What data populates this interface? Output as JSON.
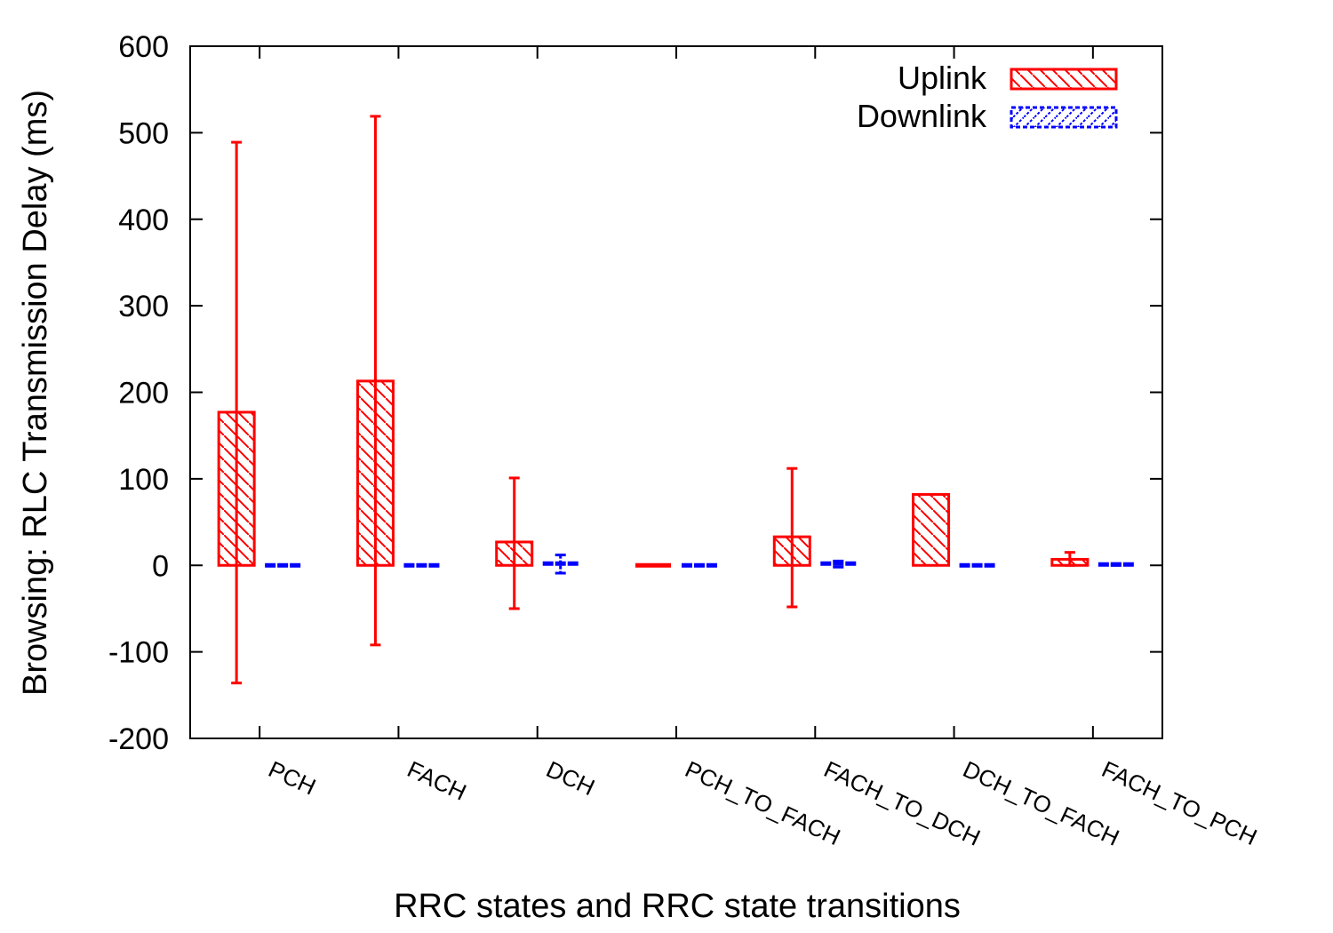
{
  "chart_data": {
    "type": "bar",
    "title": "",
    "xlabel": "RRC states and RRC state transitions",
    "ylabel": "Browsing: RLC Transmission Delay (ms)",
    "ylim": [
      -200,
      600
    ],
    "yticks": [
      -200,
      -100,
      0,
      100,
      200,
      300,
      400,
      500,
      600
    ],
    "grid": false,
    "legend_position": "top-right",
    "categories": [
      "PCH",
      "FACH",
      "DCH",
      "PCH_TO_FACH",
      "FACH_TO_DCH",
      "DCH_TO_FACH",
      "FACH_TO_PCH"
    ],
    "series": [
      {
        "name": "Uplink",
        "color": "#ff0000",
        "pattern": "hatch",
        "values": [
          177,
          213,
          27,
          0,
          33,
          82,
          7
        ],
        "error_low": [
          -136,
          -92,
          -50,
          0,
          -48,
          82,
          0
        ],
        "error_high": [
          489,
          519,
          101,
          0,
          112,
          82,
          15
        ]
      },
      {
        "name": "Downlink",
        "color": "#0000ff",
        "pattern": "dashed-hatch",
        "values": [
          0,
          0,
          2,
          0,
          2,
          0,
          1
        ],
        "error_low": [
          0,
          0,
          -9,
          0,
          -2,
          0,
          0
        ],
        "error_high": [
          0,
          0,
          12,
          0,
          5,
          0,
          2
        ]
      }
    ]
  }
}
